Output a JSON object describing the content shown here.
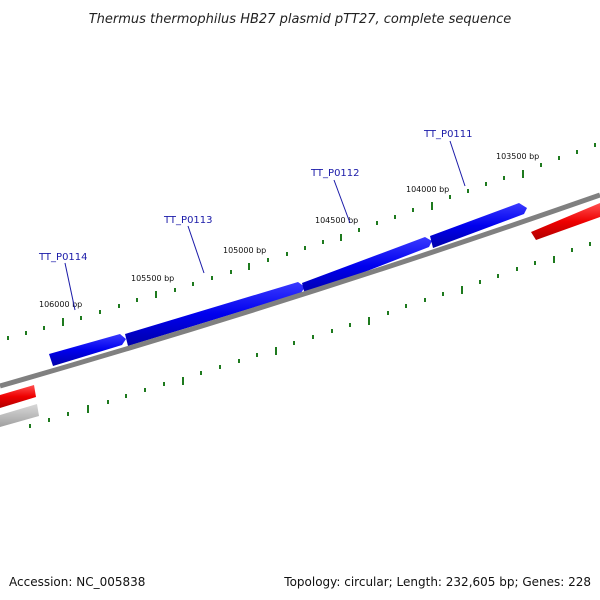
{
  "title": "Thermus thermophilus HB27 plasmid pTT27, complete sequence",
  "footer": {
    "accession": "Accession: NC_005838",
    "summary": "Topology: circular; Length: 232,605 bp; Genes: 228"
  },
  "colors": {
    "forward_gene": "#0000ee",
    "reverse_gene": "#ee0000",
    "other_feature": "#b4b4b4",
    "backbone": "#808080",
    "ticks": "#1e7a1e",
    "gene_label": "#1a1aa8"
  },
  "position_labels": [
    "106000 bp",
    "105500 bp",
    "105000 bp",
    "104500 bp",
    "104000 bp",
    "103500 bp"
  ],
  "gene_labels": [
    "TT_P0114",
    "TT_P0113",
    "TT_P0112",
    "TT_P0111"
  ]
}
